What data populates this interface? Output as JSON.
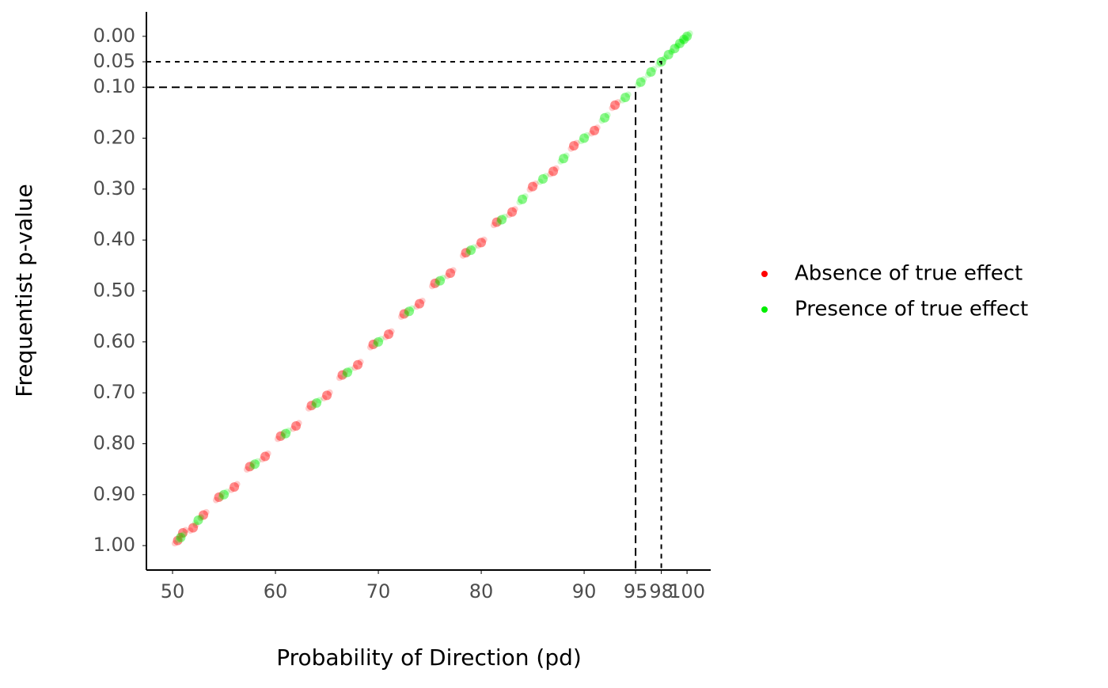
{
  "chart_data": {
    "type": "scatter",
    "x_label": "Probability of Direction (pd)",
    "y_label": "Frequentist p-value",
    "xlim": [
      47.46,
      102.3
    ],
    "ylim": [
      -0.048,
      1.048
    ],
    "y_reversed": true,
    "xticks": [
      50,
      60,
      70,
      80,
      90,
      95,
      {
        "value": 97.5,
        "label": "98"
      },
      100
    ],
    "yticks": [
      {
        "value": 0,
        "label": "0.00"
      },
      {
        "value": 0.05,
        "label": "0.05"
      },
      {
        "value": 0.1,
        "label": "0.10"
      },
      {
        "value": 0.2,
        "label": "0.20"
      },
      {
        "value": 0.3,
        "label": "0.30"
      },
      {
        "value": 0.4,
        "label": "0.40"
      },
      {
        "value": 0.5,
        "label": "0.50"
      },
      {
        "value": 0.6,
        "label": "0.60"
      },
      {
        "value": 0.7,
        "label": "0.70"
      },
      {
        "value": 0.8,
        "label": "0.80"
      },
      {
        "value": 0.9,
        "label": "0.90"
      },
      {
        "value": 1,
        "label": "1.00"
      }
    ],
    "reference_lines": [
      {
        "x": 95,
        "y": 0.1
      },
      {
        "x": 97.5,
        "y": 0.05
      }
    ],
    "legend": "right",
    "series": [
      {
        "name": "Absence of true effect",
        "color": "#ff0000",
        "x": [
          50.5,
          51,
          52,
          53,
          54.5,
          56,
          57.5,
          59,
          60.5,
          62,
          63.5,
          65,
          66.5,
          68,
          69.5,
          71,
          72.5,
          74,
          75.5,
          77,
          78.5,
          80,
          81.5,
          83,
          85,
          87,
          89,
          91,
          93
        ],
        "values": [
          0.99,
          0.975,
          0.965,
          0.94,
          0.905,
          0.885,
          0.845,
          0.825,
          0.785,
          0.765,
          0.725,
          0.705,
          0.665,
          0.645,
          0.605,
          0.585,
          0.545,
          0.525,
          0.485,
          0.465,
          0.425,
          0.405,
          0.365,
          0.345,
          0.295,
          0.265,
          0.215,
          0.185,
          0.135
        ]
      },
      {
        "name": "Presence of true effect",
        "color": "#00ee00",
        "x": [
          50.8,
          52.5,
          55,
          58,
          61,
          64,
          67,
          70,
          73,
          76,
          79,
          82,
          84,
          86,
          88,
          90,
          92,
          94,
          95.5,
          96.5,
          97.5,
          98.2,
          98.8,
          99.3,
          99.7,
          100
        ],
        "values": [
          0.984,
          0.95,
          0.9,
          0.84,
          0.78,
          0.72,
          0.66,
          0.6,
          0.54,
          0.48,
          0.42,
          0.36,
          0.32,
          0.28,
          0.24,
          0.2,
          0.16,
          0.12,
          0.09,
          0.07,
          0.05,
          0.036,
          0.024,
          0.014,
          0.006,
          0
        ]
      }
    ]
  }
}
